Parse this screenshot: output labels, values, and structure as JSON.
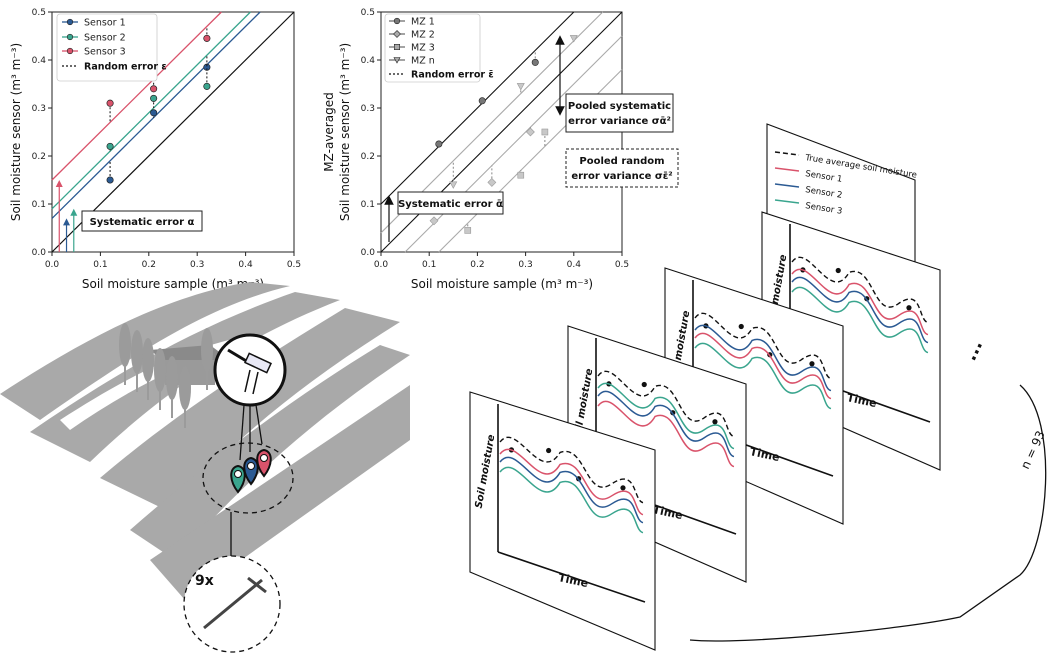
{
  "colors": {
    "sensor1": "#2b5a93",
    "sensor2": "#3aa58e",
    "sensor3": "#d9536b",
    "true_avg": "#111111",
    "field": "#a9a9a9",
    "mz_marker": "#c8c8c8"
  },
  "chart_data": [
    {
      "type": "scatter",
      "xlabel": "Soil moisture sample (m³ m⁻³)",
      "ylabel": "Soil moisture sensor (m³ m⁻³)",
      "xlim": [
        0,
        0.5
      ],
      "ylim": [
        0,
        0.5
      ],
      "xticks": [
        "0.0",
        "0.1",
        "0.2",
        "0.3",
        "0.4",
        "0.5"
      ],
      "yticks": [
        "0.0",
        "0.1",
        "0.2",
        "0.3",
        "0.4",
        "0.5"
      ],
      "legend_position": "top-left",
      "legend": [
        "Sensor 1",
        "Sensor 2",
        "Sensor 3",
        "Random error ε"
      ],
      "annotation": "Systematic error α",
      "series": [
        {
          "name": "Sensor 1",
          "x": [
            0.12,
            0.21,
            0.32
          ],
          "y": [
            0.15,
            0.29,
            0.385
          ],
          "offset": 0.07
        },
        {
          "name": "Sensor 2",
          "x": [
            0.12,
            0.21,
            0.32
          ],
          "y": [
            0.22,
            0.32,
            0.345
          ],
          "offset": 0.09
        },
        {
          "name": "Sensor 3",
          "x": [
            0.12,
            0.21,
            0.32
          ],
          "y": [
            0.31,
            0.34,
            0.445
          ],
          "offset": 0.15
        }
      ]
    },
    {
      "type": "scatter",
      "xlabel": "Soil moisture sample (m³ m⁻³)",
      "ylabel_line1": "MZ-averaged",
      "ylabel_line2": "Soil moisture sensor (m³ m⁻³)",
      "xlim": [
        0,
        0.5
      ],
      "ylim": [
        0,
        0.5
      ],
      "xticks": [
        "0.0",
        "0.1",
        "0.2",
        "0.3",
        "0.4",
        "0.5"
      ],
      "yticks": [
        "0.0",
        "0.1",
        "0.2",
        "0.3",
        "0.4",
        "0.5"
      ],
      "legend_position": "top-left",
      "legend": [
        "MZ 1",
        "MZ 2",
        "MZ 3",
        "MZ n",
        "Random error ε̄"
      ],
      "annotations": {
        "systematic": "Systematic error ᾱ",
        "pooled_sys_1": "Pooled systematic",
        "pooled_sys_2": "error variance σᾱ²",
        "pooled_rand_1": "Pooled random",
        "pooled_rand_2": "error variance σε̄²"
      },
      "series": [
        {
          "name": "MZ 1",
          "marker": "circle",
          "x": [
            0.12,
            0.21,
            0.32
          ],
          "y": [
            0.225,
            0.315,
            0.395
          ],
          "offset": 0.1
        },
        {
          "name": "MZ 2",
          "marker": "diamond",
          "x": [
            0.11,
            0.23,
            0.31
          ],
          "y": [
            0.065,
            0.145,
            0.25
          ],
          "offset": -0.05
        },
        {
          "name": "MZ 3",
          "marker": "square",
          "x": [
            0.18,
            0.29,
            0.34
          ],
          "y": [
            0.045,
            0.16,
            0.25
          ],
          "offset": -0.12
        },
        {
          "name": "MZ n",
          "marker": "triangle",
          "x": [
            0.15,
            0.29,
            0.4
          ],
          "y": [
            0.14,
            0.345,
            0.445
          ],
          "offset": 0.04
        }
      ]
    }
  ],
  "field_panel": {
    "count_label": "9x"
  },
  "timeseries": {
    "y_label": "Soil moisture",
    "x_label": "Time",
    "legend": [
      "True average soil moisture",
      "Sensor 1",
      "Sensor 2",
      "Sensor 3"
    ],
    "ellipsis": "...",
    "n_label": "n = 93"
  }
}
